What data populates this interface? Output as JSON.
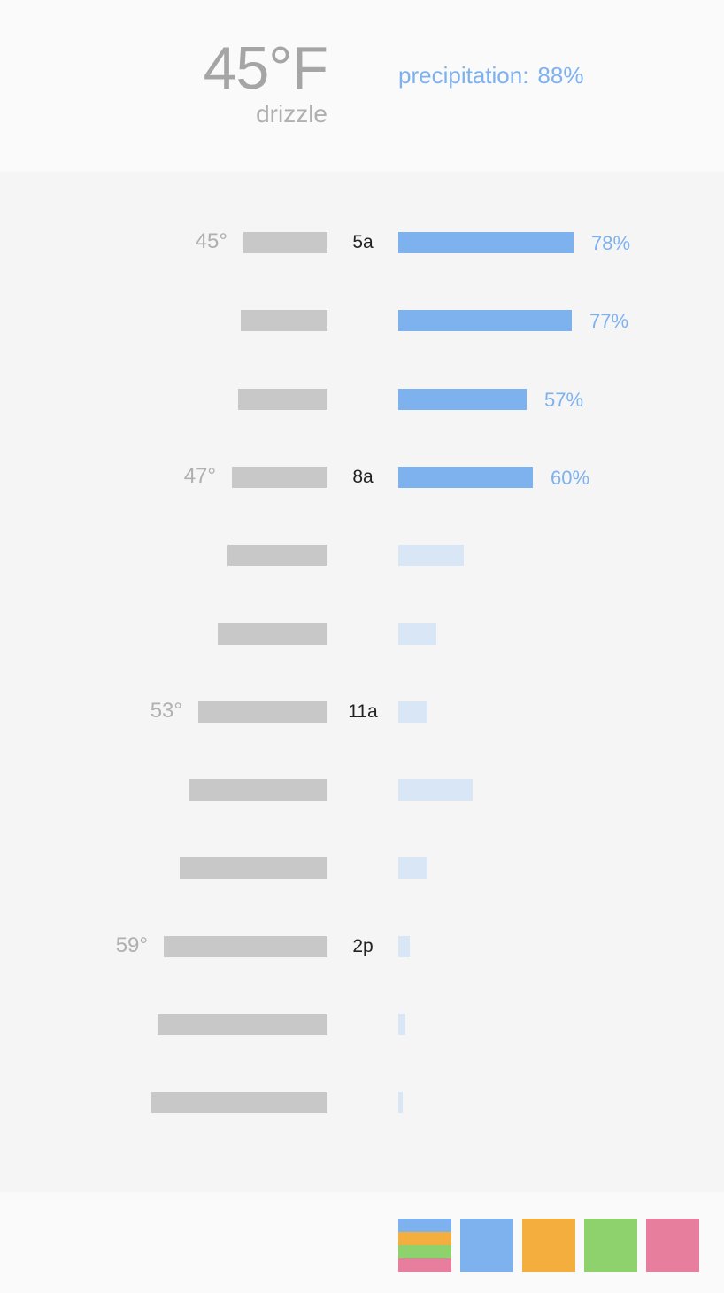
{
  "current": {
    "temperature": "45°F",
    "condition": "drizzle",
    "precip_label": "precipitation:",
    "precip_value": "88%"
  },
  "hourly": [
    {
      "hour": "5a",
      "temp_label": "45°",
      "temp": 45,
      "precip": 78,
      "precip_label": "78%"
    },
    {
      "hour": "",
      "temp_label": "",
      "temp": 45.4,
      "precip": 77,
      "precip_label": "77%"
    },
    {
      "hour": "",
      "temp_label": "",
      "temp": 45.9,
      "precip": 57,
      "precip_label": "57%"
    },
    {
      "hour": "8a",
      "temp_label": "47°",
      "temp": 47,
      "precip": 60,
      "precip_label": "60%"
    },
    {
      "hour": "",
      "temp_label": "",
      "temp": 47.8,
      "precip": 29,
      "precip_label": ""
    },
    {
      "hour": "",
      "temp_label": "",
      "temp": 49.5,
      "precip": 17,
      "precip_label": ""
    },
    {
      "hour": "11a",
      "temp_label": "53°",
      "temp": 53,
      "precip": 13,
      "precip_label": ""
    },
    {
      "hour": "",
      "temp_label": "",
      "temp": 54.6,
      "precip": 33,
      "precip_label": ""
    },
    {
      "hour": "",
      "temp_label": "",
      "temp": 56.2,
      "precip": 13,
      "precip_label": ""
    },
    {
      "hour": "2p",
      "temp_label": "59°",
      "temp": 59,
      "precip": 5,
      "precip_label": ""
    },
    {
      "hour": "",
      "temp_label": "",
      "temp": 60.2,
      "precip": 3,
      "precip_label": ""
    },
    {
      "hour": "",
      "temp_label": "",
      "temp": 61.2,
      "precip": 2,
      "precip_label": ""
    }
  ],
  "swatches": [
    {
      "name": "combined",
      "colors": [
        "#7db2ef",
        "#f3ae3d",
        "#8dd26c",
        "#e77e9d"
      ]
    },
    {
      "name": "precipitation",
      "colors": [
        "#7db2ef"
      ]
    },
    {
      "name": "temperature",
      "colors": [
        "#f3ae3d"
      ]
    },
    {
      "name": "green",
      "colors": [
        "#8dd26c"
      ]
    },
    {
      "name": "pink",
      "colors": [
        "#e77e9d"
      ]
    }
  ]
}
